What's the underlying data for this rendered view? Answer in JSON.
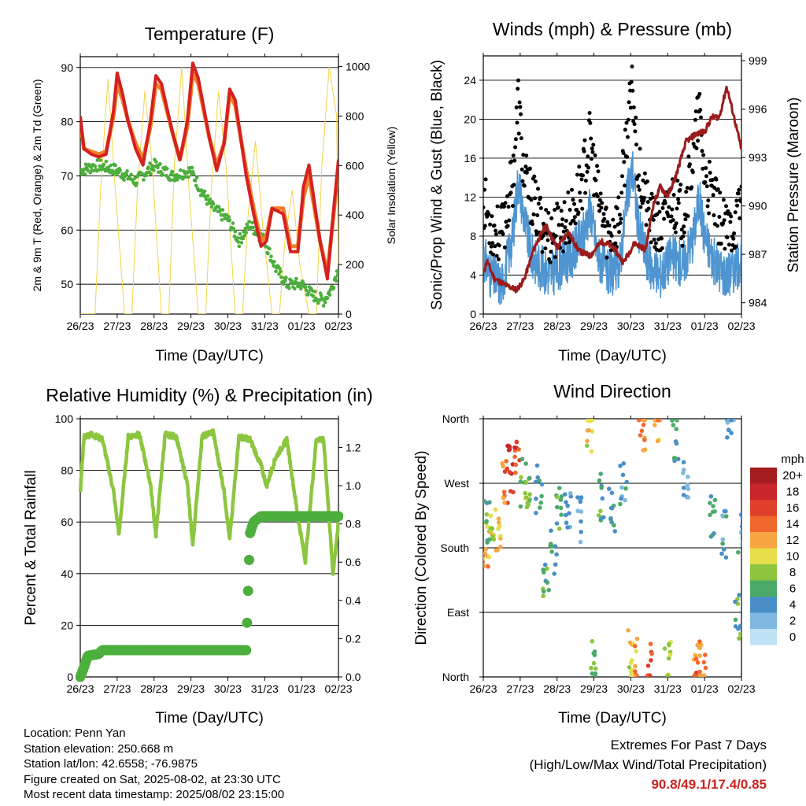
{
  "colors": {
    "temp_2m": "#d62020",
    "temp_9m": "#f07f28",
    "dewpoint": "#4cae3c",
    "solar": "#f3d44a",
    "wind": "#4f95d1",
    "gust": "#000000",
    "pressure": "#9b1b1b",
    "rh": "#8cc63f",
    "precip": "#4cae3c"
  },
  "panels": {
    "temperature": {
      "title": "Temperature (F)",
      "ylabel_left": "2m & 9m T (Red, Orange) & 2m Td (Green)",
      "ylabel_right": "Solar Insolation (Yellow)",
      "xlabel": "Time (Day/UTC)",
      "left_ticks": [
        "50",
        "60",
        "70",
        "80",
        "90"
      ],
      "right_ticks": [
        "0",
        "200",
        "400",
        "600",
        "800",
        "1000"
      ]
    },
    "winds": {
      "title": "Winds (mph) & Pressure (mb)",
      "ylabel_left": "Sonic/Prop Wind & Gust (Blue, Black)",
      "ylabel_right": "Station Pressure (Maroon)",
      "xlabel": "Time (Day/UTC)",
      "left_ticks": [
        "0",
        "4",
        "8",
        "12",
        "16",
        "20",
        "24"
      ],
      "right_ticks": [
        "984",
        "987",
        "990",
        "993",
        "996",
        "999"
      ]
    },
    "humidity": {
      "title": "Relative Humidity (%) & Precipitation (in)",
      "ylabel_left": "Percent & Total Rainfall",
      "xlabel": "Time (Day/UTC)",
      "left_ticks": [
        "0",
        "20",
        "40",
        "60",
        "80",
        "100"
      ],
      "right_ticks": [
        "0.0",
        "0.2",
        "0.4",
        "0.6",
        "0.8",
        "1.0",
        "1.2"
      ]
    },
    "direction": {
      "title": "Wind Direction",
      "ylabel_left": "Direction (Colored By Speed)",
      "xlabel": "Time (Day/UTC)",
      "dir_ticks": [
        "North",
        "East",
        "South",
        "West",
        "North"
      ],
      "legend_title": "mph",
      "legend_labels": [
        "20+",
        "18",
        "16",
        "14",
        "12",
        "10",
        "8",
        "6",
        "4",
        "2",
        "0"
      ],
      "legend_colors": [
        "#a51c20",
        "#c8262a",
        "#e0402a",
        "#f0682c",
        "#f7a642",
        "#e6de4a",
        "#8cc63f",
        "#4caa68",
        "#4a8ec8",
        "#7fb8e0",
        "#bfe2f5"
      ]
    }
  },
  "x_ticks": [
    "26/23",
    "27/23",
    "28/23",
    "29/23",
    "30/23",
    "31/23",
    "01/23",
    "02/23"
  ],
  "info": {
    "location": "Location: Penn Yan",
    "elevation": "Station elevation: 250.668 m",
    "latlon": "Station lat/lon: 42.6558; -76.9875",
    "created": "Figure created on Sat, 2025-08-02, at 23:30 UTC",
    "recent": "Most recent data timestamp: 2025/08/02 23:15:00"
  },
  "extremes": {
    "line1": "Extremes For Past 7 Days",
    "line2": "(High/Low/Max Wind/Total Precipitation)",
    "values": "90.8/49.1/17.4/0.85"
  },
  "chart_data": [
    {
      "type": "line",
      "title": "Temperature (F)",
      "xlabel": "Time (Day/UTC)",
      "ylabel": "2m & 9m T (Red, Orange) & 2m Td (Green)",
      "y2label": "Solar Insolation (Yellow)",
      "x_unit": "days since 26/23",
      "ylim": [
        44.5,
        92
      ],
      "y2lim": [
        0,
        1040
      ],
      "series": [
        {
          "name": "2m T",
          "axis": "left",
          "x": [
            0,
            0.1,
            0.3,
            0.5,
            0.7,
            0.9,
            1.0,
            1.15,
            1.3,
            1.5,
            1.7,
            1.9,
            2.05,
            2.2,
            2.5,
            2.7,
            2.9,
            3.05,
            3.2,
            3.5,
            3.7,
            3.9,
            4.05,
            4.2,
            4.5,
            4.7,
            4.9,
            5.05,
            5.2,
            5.5,
            5.7,
            5.9,
            6.05,
            6.2,
            6.5,
            6.7,
            6.9,
            7.0
          ],
          "y": [
            81,
            75,
            74,
            73.5,
            74,
            82,
            89,
            85,
            80,
            75,
            72,
            80,
            88.5,
            87,
            78,
            73,
            80,
            90.8,
            88,
            77,
            71,
            76,
            86,
            84,
            70,
            63,
            57,
            58,
            64,
            63,
            56,
            56,
            68,
            72,
            58,
            51,
            66,
            73
          ]
        },
        {
          "name": "9m T",
          "axis": "left",
          "x": [
            0,
            0.1,
            0.3,
            0.5,
            0.7,
            0.9,
            1.0,
            1.15,
            1.3,
            1.5,
            1.7,
            1.9,
            2.05,
            2.2,
            2.5,
            2.7,
            2.9,
            3.05,
            3.2,
            3.5,
            3.7,
            3.9,
            4.05,
            4.2,
            4.5,
            4.7,
            4.9,
            5.05,
            5.2,
            5.5,
            5.7,
            5.9,
            6.05,
            6.2,
            6.5,
            6.7,
            6.9,
            7.0
          ],
          "y": [
            80,
            75,
            74.5,
            74,
            74.5,
            81,
            87,
            84,
            80,
            76,
            73,
            79,
            87,
            86,
            78,
            73,
            79,
            89,
            87,
            77,
            72,
            76,
            85,
            83,
            71,
            64,
            58,
            59,
            64,
            64,
            57,
            57,
            66,
            70,
            58,
            52,
            65,
            72
          ]
        },
        {
          "name": "2m Td",
          "axis": "left",
          "x": [
            0,
            0.5,
            1.0,
            1.5,
            2.0,
            2.5,
            3.0,
            3.3,
            3.6,
            4.0,
            4.3,
            4.6,
            5.0,
            5.3,
            5.6,
            6.0,
            6.3,
            6.6,
            6.8,
            7.0
          ],
          "y": [
            71,
            72,
            71,
            69,
            72,
            70,
            71,
            67,
            64,
            62,
            58,
            61,
            58,
            53,
            50,
            50,
            48,
            47,
            49,
            53
          ]
        },
        {
          "name": "Solar Insolation",
          "axis": "right",
          "x": [
            0,
            0.4,
            0.55,
            0.75,
            0.95,
            1.2,
            1.4,
            1.55,
            1.75,
            1.95,
            2.2,
            2.4,
            2.55,
            2.75,
            2.95,
            3.2,
            3.4,
            3.55,
            3.75,
            3.95,
            4.2,
            4.4,
            4.55,
            4.75,
            4.95,
            5.2,
            5.4,
            5.55,
            5.75,
            5.95,
            6.2,
            6.4,
            6.55,
            6.75,
            6.95,
            7.0
          ],
          "y": [
            0,
            0,
            500,
            950,
            500,
            0,
            0,
            500,
            900,
            600,
            0,
            0,
            600,
            1000,
            500,
            0,
            0,
            500,
            900,
            600,
            0,
            0,
            400,
            700,
            350,
            0,
            0,
            300,
            500,
            200,
            0,
            0,
            600,
            1000,
            800,
            200
          ]
        }
      ]
    },
    {
      "type": "line",
      "title": "Winds (mph) & Pressure (mb)",
      "xlabel": "Time (Day/UTC)",
      "ylabel": "Sonic/Prop Wind & Gust (Blue, Black)",
      "y2label": "Station Pressure (Maroon)",
      "x_unit": "days since 26/23",
      "ylim": [
        0,
        26.5
      ],
      "y2lim": [
        983.3,
        999.3
      ],
      "series": [
        {
          "name": "Wind",
          "axis": "left",
          "x": [
            0,
            0.2,
            0.5,
            0.8,
            0.95,
            1.1,
            1.3,
            1.5,
            1.8,
            2.1,
            2.4,
            2.7,
            2.9,
            3.1,
            3.4,
            3.7,
            3.9,
            4.05,
            4.2,
            4.5,
            4.8,
            5.1,
            5.4,
            5.7,
            5.85,
            6.0,
            6.3,
            6.6,
            6.9,
            7.0
          ],
          "y": [
            6,
            4,
            3,
            8,
            14,
            10,
            6,
            5,
            4,
            5,
            6,
            8,
            11,
            6,
            4,
            5,
            12,
            15,
            9,
            5,
            4,
            6,
            5,
            8,
            12,
            8,
            5,
            4,
            5,
            6
          ]
        },
        {
          "name": "Gust",
          "axis": "left",
          "x": [
            0,
            0.2,
            0.5,
            0.8,
            0.95,
            1.1,
            1.3,
            1.5,
            1.8,
            2.1,
            2.4,
            2.7,
            2.9,
            3.1,
            3.4,
            3.7,
            3.9,
            4.05,
            4.2,
            4.5,
            4.8,
            5.1,
            5.4,
            5.7,
            5.85,
            6.0,
            6.3,
            6.6,
            6.9,
            7.0
          ],
          "y": [
            12,
            9,
            8,
            14,
            22,
            14,
            12,
            10,
            8,
            9,
            10,
            14,
            18,
            12,
            8,
            10,
            19,
            23,
            15,
            10,
            8,
            12,
            10,
            16,
            21,
            14,
            11,
            8,
            10,
            12
          ]
        },
        {
          "name": "Station Pressure",
          "axis": "right",
          "x": [
            0,
            0.1,
            0.3,
            0.6,
            0.9,
            1.1,
            1.4,
            1.7,
            2.0,
            2.3,
            2.6,
            2.9,
            3.2,
            3.5,
            3.8,
            4.1,
            4.4,
            4.6,
            4.8,
            5.0,
            5.2,
            5.5,
            5.8,
            6.0,
            6.2,
            6.4,
            6.6,
            6.8,
            7.0
          ],
          "y": [
            985.8,
            986.6,
            985.5,
            985.1,
            984.8,
            985.4,
            987.5,
            988.8,
            987.4,
            988.4,
            987.2,
            986.9,
            987.8,
            987.5,
            986.5,
            987.7,
            987.3,
            990.0,
            991.2,
            990.6,
            991.7,
            994.0,
            994.5,
            994.6,
            995.5,
            995.5,
            997.4,
            995.5,
            993.5
          ]
        }
      ]
    },
    {
      "type": "line",
      "title": "Relative Humidity (%) & Precipitation (in)",
      "xlabel": "Time (Day/UTC)",
      "ylabel": "Percent & Total Rainfall",
      "x_unit": "days since 26/23",
      "ylim": [
        0,
        100
      ],
      "y2lim": [
        0,
        1.35
      ],
      "series": [
        {
          "name": "RH",
          "axis": "left",
          "x": [
            0,
            0.1,
            0.3,
            0.6,
            0.9,
            1.05,
            1.3,
            1.6,
            1.9,
            2.05,
            2.3,
            2.6,
            2.9,
            3.05,
            3.3,
            3.6,
            3.9,
            4.05,
            4.3,
            4.6,
            4.9,
            5.05,
            5.3,
            5.6,
            5.9,
            6.1,
            6.4,
            6.6,
            6.85,
            7.0
          ],
          "y": [
            72,
            93,
            94,
            92,
            72,
            55,
            93,
            94,
            75,
            55,
            94,
            93,
            75,
            51,
            93,
            95,
            72,
            53,
            93,
            92,
            82,
            74,
            85,
            92,
            62,
            45,
            92,
            92,
            40,
            60
          ]
        },
        {
          "name": "Total Precipitation",
          "axis": "right",
          "x": [
            0,
            0.1,
            0.2,
            0.5,
            0.6,
            1.0,
            2.0,
            3.0,
            4.0,
            4.5,
            4.55,
            4.6,
            4.7,
            4.9,
            5.5,
            6.0,
            7.0
          ],
          "y": [
            0.0,
            0.05,
            0.11,
            0.12,
            0.14,
            0.14,
            0.14,
            0.14,
            0.14,
            0.14,
            0.45,
            0.75,
            0.81,
            0.84,
            0.84,
            0.84,
            0.84
          ]
        }
      ]
    },
    {
      "type": "scatter",
      "title": "Wind Direction",
      "xlabel": "Time (Day/UTC)",
      "ylabel": "Direction (Colored By Speed)",
      "x_unit": "days since 26/23",
      "ylim": [
        0,
        360
      ],
      "y_tick_labels": [
        "North",
        "East",
        "South",
        "West",
        "North"
      ],
      "color_scale_mph": [
        0,
        20
      ],
      "points": [
        {
          "x": 0.05,
          "y": 180,
          "speed": 12
        },
        {
          "x": 0.1,
          "y": 220,
          "speed": 6
        },
        {
          "x": 0.2,
          "y": 200,
          "speed": 10
        },
        {
          "x": 0.4,
          "y": 210,
          "speed": 11
        },
        {
          "x": 0.6,
          "y": 270,
          "speed": 14
        },
        {
          "x": 0.75,
          "y": 290,
          "speed": 17
        },
        {
          "x": 0.9,
          "y": 310,
          "speed": 16
        },
        {
          "x": 1.1,
          "y": 270,
          "speed": 8
        },
        {
          "x": 1.2,
          "y": 255,
          "speed": 7
        },
        {
          "x": 1.5,
          "y": 260,
          "speed": 5
        },
        {
          "x": 1.7,
          "y": 140,
          "speed": 6
        },
        {
          "x": 1.9,
          "y": 170,
          "speed": 5
        },
        {
          "x": 2.05,
          "y": 240,
          "speed": 6
        },
        {
          "x": 2.3,
          "y": 230,
          "speed": 4
        },
        {
          "x": 2.6,
          "y": 220,
          "speed": 3
        },
        {
          "x": 2.9,
          "y": 340,
          "speed": 10
        },
        {
          "x": 3.0,
          "y": 20,
          "speed": 7
        },
        {
          "x": 3.2,
          "y": 250,
          "speed": 6
        },
        {
          "x": 3.5,
          "y": 230,
          "speed": 5
        },
        {
          "x": 3.8,
          "y": 270,
          "speed": 4
        },
        {
          "x": 4.0,
          "y": 30,
          "speed": 10
        },
        {
          "x": 4.1,
          "y": 20,
          "speed": 12
        },
        {
          "x": 4.3,
          "y": 350,
          "speed": 13
        },
        {
          "x": 4.5,
          "y": 15,
          "speed": 15
        },
        {
          "x": 4.7,
          "y": 355,
          "speed": 12
        },
        {
          "x": 5.0,
          "y": 25,
          "speed": 9
        },
        {
          "x": 5.2,
          "y": 330,
          "speed": 5
        },
        {
          "x": 5.5,
          "y": 280,
          "speed": 3
        },
        {
          "x": 5.8,
          "y": 10,
          "speed": 14
        },
        {
          "x": 5.95,
          "y": 15,
          "speed": 13
        },
        {
          "x": 6.2,
          "y": 230,
          "speed": 5
        },
        {
          "x": 6.5,
          "y": 200,
          "speed": 4
        },
        {
          "x": 6.7,
          "y": 350,
          "speed": 3
        },
        {
          "x": 6.9,
          "y": 80,
          "speed": 6
        },
        {
          "x": 7.0,
          "y": 200,
          "speed": 4
        }
      ]
    }
  ]
}
